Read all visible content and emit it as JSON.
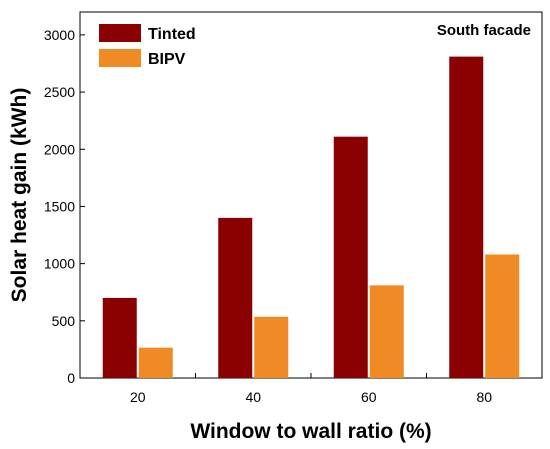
{
  "chart_data": {
    "type": "bar",
    "categories": [
      "20",
      "40",
      "60",
      "80"
    ],
    "series": [
      {
        "name": "Tinted",
        "values": [
          700,
          1400,
          2110,
          2810
        ],
        "color": "#8b0000"
      },
      {
        "name": "BIPV",
        "values": [
          265,
          535,
          810,
          1080
        ],
        "color": "#f08a24"
      }
    ],
    "yticks": [
      0,
      500,
      1000,
      1500,
      2000,
      2500,
      3000
    ],
    "ylim": [
      0,
      3200
    ],
    "xlabel": "Window to wall ratio (%)",
    "ylabel": "Solar heat gain (kWh)",
    "annotation": "South facade",
    "legend_position": "top-left",
    "grid": false
  }
}
